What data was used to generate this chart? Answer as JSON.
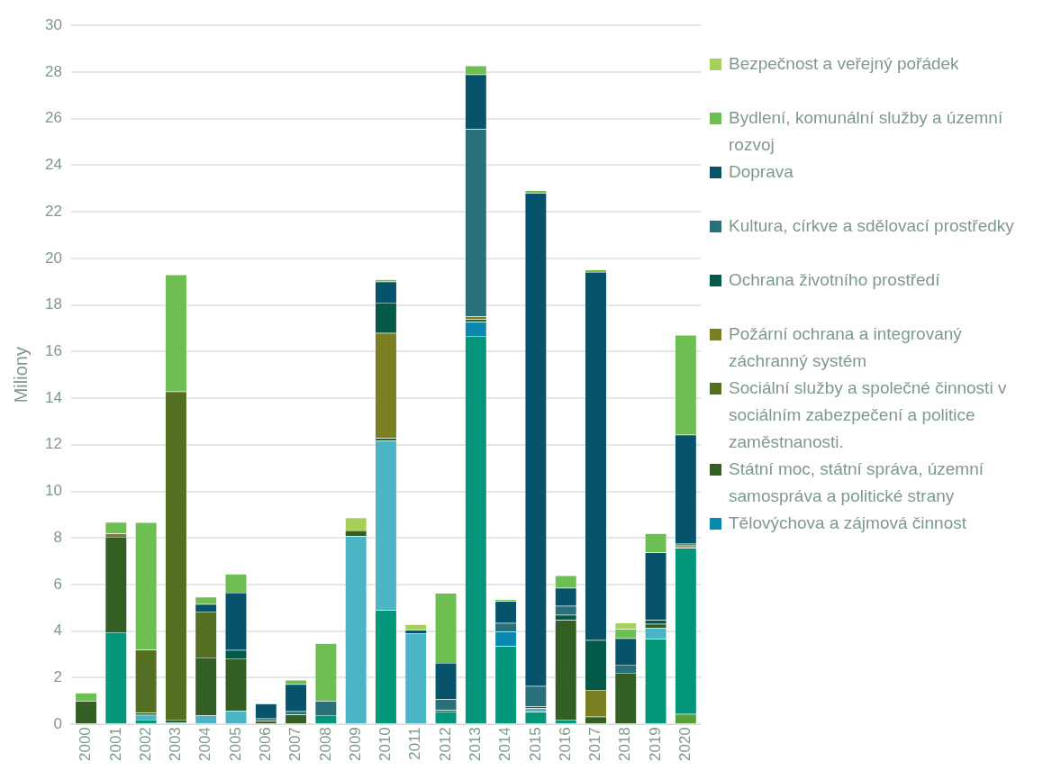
{
  "chart_data": {
    "type": "bar",
    "stacked": true,
    "ylabel": "Miliony",
    "categories": [
      "2000",
      "2001",
      "2002",
      "2003",
      "2004",
      "2005",
      "2006",
      "2007",
      "2008",
      "2009",
      "2010",
      "2011",
      "2012",
      "2013",
      "2014",
      "2015",
      "2016",
      "2017",
      "2018",
      "2019",
      "2020"
    ],
    "series": [
      {
        "color": "#5a9e3a",
        "values": [
          0,
          0,
          0,
          0,
          0,
          0,
          0,
          0,
          0,
          0,
          0,
          0,
          0,
          0,
          0,
          0,
          0,
          0,
          0,
          0,
          0.44
        ]
      },
      {
        "color": "#03967a",
        "values": [
          0,
          3.95,
          0.2,
          0,
          0,
          0,
          0,
          0,
          0.39,
          0,
          4.91,
          0,
          0.55,
          16.67,
          3.35,
          0.53,
          0.2,
          0,
          0,
          3.67,
          7.13
        ]
      },
      {
        "color": "#4bb5c6",
        "values": [
          0,
          0,
          0.2,
          0.08,
          0.37,
          0.57,
          0,
          0,
          0,
          8.08,
          7.26,
          3.91,
          0,
          0,
          0,
          0.16,
          0,
          0,
          0,
          0.45,
          0
        ]
      },
      {
        "name": "Tělovýchova a zájmová činnost",
        "color": "#0b88b0",
        "values": [
          0,
          0,
          0,
          0,
          0,
          0,
          0,
          0,
          0,
          0,
          0,
          0,
          0,
          0.6,
          0.62,
          0,
          0,
          0,
          0,
          0,
          0
        ]
      },
      {
        "name": "Státní moc, státní správa, územní samospráva a politické strany",
        "color": "#335e24",
        "values": [
          1.0,
          4.1,
          0.1,
          0.12,
          2.5,
          2.26,
          0.15,
          0.41,
          0,
          0.24,
          0.11,
          0,
          0.06,
          0.12,
          0,
          0.08,
          4.27,
          0.33,
          2.21,
          0.19,
          0
        ]
      },
      {
        "name": "Sociální služby a společné činnosti v sociálním zabezpečení a politice zaměstnanosti.",
        "color": "#546e22",
        "values": [
          0,
          0,
          2.7,
          14.08,
          1.97,
          0,
          0,
          null,
          0,
          0,
          0,
          0,
          0,
          0,
          0,
          0,
          0,
          0,
          0,
          0,
          0.05
        ]
      },
      {
        "name": "Požární ochrana a integrovaný záchranný systém",
        "color": "#7a8021",
        "values": [
          0,
          0.13,
          0,
          0,
          0,
          0,
          0,
          0,
          0,
          0,
          4.52,
          0,
          0,
          0.12,
          0,
          0,
          0,
          1.15,
          0,
          0,
          0.05
        ]
      },
      {
        "name": "Ochrana životního prostředí",
        "color": "#035a48",
        "values": [
          0,
          0,
          0,
          0,
          0,
          0.36,
          0,
          0,
          0,
          0,
          1.3,
          0,
          0,
          0,
          0,
          0,
          0.22,
          2.13,
          0,
          0.16,
          0
        ]
      },
      {
        "name": "Kultura, církve a sdělovací prostředky",
        "color": "#28707a",
        "values": [
          0,
          0,
          0,
          0,
          0,
          0,
          0.1,
          0.15,
          0.61,
          0,
          0,
          0,
          0.47,
          8.04,
          0.38,
          0.87,
          0.39,
          0,
          0.35,
          0,
          0.08
        ]
      },
      {
        "name": "Doprava",
        "color": "#07536b",
        "values": [
          0,
          0,
          0,
          0,
          0.32,
          2.46,
          0.64,
          1.16,
          0,
          0,
          0.9,
          0.14,
          1.56,
          2.34,
          0.93,
          21.17,
          0.77,
          15.8,
          1.13,
          2.9,
          4.68
        ]
      },
      {
        "name": "Bydlení, komunální služby a územní rozvoj",
        "color": "#6ebf52",
        "values": [
          0.35,
          0.5,
          5.47,
          5.02,
          0.31,
          0.8,
          null,
          0.18,
          2.48,
          0,
          0.1,
          0,
          2.99,
          0.38,
          0.08,
          0.1,
          0.54,
          0.1,
          0.4,
          0.82,
          4.28
        ]
      },
      {
        "name": "Bezpečnost a veřejný pořádek",
        "color": "#a6d05a",
        "values": [
          0,
          0,
          0,
          0,
          0,
          0,
          0,
          0,
          0,
          0.55,
          0,
          0.24,
          0,
          0,
          0,
          0,
          0,
          0,
          0.27,
          0,
          0
        ]
      }
    ],
    "ylim": [
      0,
      30
    ],
    "yticks": [
      0,
      2,
      4,
      6,
      8,
      10,
      12,
      14,
      16,
      18,
      20,
      22,
      24,
      26,
      28,
      30
    ],
    "grid": "y",
    "legend": "right"
  }
}
